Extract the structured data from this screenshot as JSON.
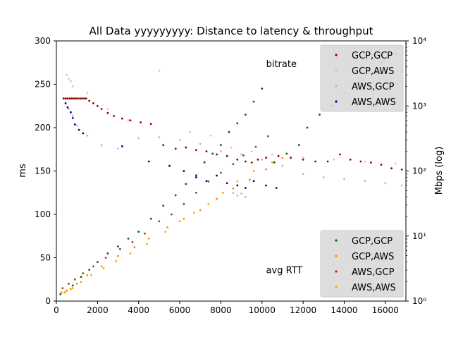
{
  "chart_data": {
    "type": "scatter",
    "title": "All Data yyyyyyyyy: Distance to latency & throughput",
    "xlabel": "",
    "ylabel_left": "ms",
    "ylabel_right": "Mbps (log)",
    "xlim": [
      0,
      17000
    ],
    "ylim_left": [
      0,
      300
    ],
    "ylim_right": [
      1,
      10000
    ],
    "y_right_scale": "log",
    "x_ticks": [
      0,
      2000,
      4000,
      6000,
      8000,
      10000,
      12000,
      14000,
      16000
    ],
    "y_left_ticks": [
      0,
      50,
      100,
      150,
      200,
      250,
      300
    ],
    "y_right_ticks": [
      1,
      10,
      100,
      1000,
      10000
    ],
    "y_right_tick_labels": [
      "10⁰",
      "10¹",
      "10²",
      "10³",
      "10⁴"
    ],
    "grid": false,
    "annotations": [
      {
        "text": "bitrate",
        "x": 10200,
        "y_left": 270
      },
      {
        "text": "avg RTT",
        "x": 10200,
        "y_left": 32
      }
    ],
    "legends": [
      {
        "placement": "upper-right",
        "entries": [
          {
            "label": "GCP,GCP",
            "color": "#8b0000"
          },
          {
            "label": "GCP,AWS",
            "color": "#f4b6b6"
          },
          {
            "label": "AWS,GCP",
            "color": "#dda0dd"
          },
          {
            "label": "AWS,AWS",
            "color": "#00008b"
          }
        ]
      },
      {
        "placement": "lower-right",
        "entries": [
          {
            "label": "GCP,GCP",
            "color": "#006400"
          },
          {
            "label": "GCP,AWS",
            "color": "#ff8c00"
          },
          {
            "label": "AWS,GCP",
            "color": "#8b4513"
          },
          {
            "label": "AWS,AWS",
            "color": "#ffa500"
          }
        ]
      }
    ],
    "series": [
      {
        "name": "GCP,GCP",
        "kind": "bitrate",
        "axis": "right",
        "color": "#8b0000",
        "points": [
          [
            350,
            1300
          ],
          [
            450,
            1300
          ],
          [
            550,
            1300
          ],
          [
            650,
            1300
          ],
          [
            750,
            1300
          ],
          [
            850,
            1300
          ],
          [
            950,
            1300
          ],
          [
            1050,
            1300
          ],
          [
            1150,
            1300
          ],
          [
            1250,
            1300
          ],
          [
            1350,
            1300
          ],
          [
            1450,
            1300
          ],
          [
            1600,
            1200
          ],
          [
            1800,
            1100
          ],
          [
            2000,
            1000
          ],
          [
            2200,
            900
          ],
          [
            2500,
            780
          ],
          [
            2800,
            700
          ],
          [
            3200,
            640
          ],
          [
            3600,
            600
          ],
          [
            4100,
            560
          ],
          [
            4600,
            530
          ],
          [
            5200,
            250
          ],
          [
            5800,
            220
          ],
          [
            6300,
            230
          ],
          [
            6800,
            210
          ],
          [
            7300,
            200
          ],
          [
            7800,
            180
          ],
          [
            8300,
            170
          ],
          [
            8800,
            150
          ],
          [
            9200,
            140
          ],
          [
            9500,
            135
          ],
          [
            9800,
            150
          ],
          [
            10200,
            160
          ],
          [
            10800,
            170
          ],
          [
            11400,
            160
          ],
          [
            12000,
            150
          ],
          [
            12600,
            140
          ],
          [
            13200,
            140
          ],
          [
            13800,
            180
          ],
          [
            14300,
            150
          ],
          [
            14800,
            140
          ],
          [
            15300,
            135
          ],
          [
            15800,
            125
          ],
          [
            16300,
            110
          ],
          [
            16800,
            105
          ]
        ]
      },
      {
        "name": "GCP,AWS",
        "kind": "bitrate",
        "axis": "right",
        "color": "#f4b6b6",
        "points": [
          [
            500,
            3000
          ],
          [
            600,
            2600
          ],
          [
            700,
            2400
          ],
          [
            800,
            2000
          ],
          [
            1500,
            1600
          ],
          [
            2500,
            900
          ],
          [
            3500,
            600
          ],
          [
            5000,
            3500
          ],
          [
            6500,
            400
          ],
          [
            7500,
            350
          ],
          [
            8500,
            230
          ],
          [
            9500,
            200
          ],
          [
            10500,
            180
          ],
          [
            12000,
            160
          ],
          [
            13500,
            150
          ],
          [
            15000,
            140
          ],
          [
            16500,
            130
          ]
        ]
      },
      {
        "name": "AWS,GCP",
        "kind": "bitrate",
        "axis": "right",
        "color": "#dda0dd",
        "points": [
          [
            600,
            900
          ],
          [
            800,
            700
          ],
          [
            1000,
            500
          ],
          [
            1500,
            350
          ],
          [
            2200,
            250
          ],
          [
            3000,
            220
          ],
          [
            4000,
            320
          ],
          [
            5000,
            330
          ],
          [
            6000,
            300
          ],
          [
            7000,
            260
          ],
          [
            8000,
            200
          ],
          [
            9000,
            180
          ],
          [
            10000,
            150
          ],
          [
            11000,
            120
          ],
          [
            12000,
            90
          ],
          [
            13000,
            80
          ],
          [
            14000,
            75
          ],
          [
            15000,
            70
          ],
          [
            16000,
            65
          ],
          [
            16800,
            60
          ],
          [
            9200,
            40
          ],
          [
            9000,
            45
          ],
          [
            8800,
            42
          ],
          [
            8600,
            46
          ]
        ]
      },
      {
        "name": "AWS,AWS",
        "kind": "bitrate",
        "axis": "right",
        "color": "#00008b",
        "points": [
          [
            450,
            1100
          ],
          [
            550,
            950
          ],
          [
            700,
            800
          ],
          [
            800,
            650
          ],
          [
            900,
            520
          ],
          [
            1100,
            430
          ],
          [
            1300,
            380
          ],
          [
            3200,
            240
          ],
          [
            4500,
            140
          ],
          [
            5500,
            120
          ],
          [
            6200,
            100
          ],
          [
            6800,
            80
          ],
          [
            7300,
            70
          ],
          [
            7800,
            85
          ],
          [
            8300,
            65
          ],
          [
            8800,
            60
          ],
          [
            9200,
            55
          ],
          [
            9600,
            70
          ],
          [
            10200,
            60
          ],
          [
            10700,
            55
          ]
        ]
      },
      {
        "name": "GCP,GCP",
        "kind": "rtt",
        "axis": "left",
        "color": "#006400",
        "points": [
          [
            200,
            8
          ],
          [
            500,
            12
          ],
          [
            800,
            18
          ],
          [
            1200,
            28
          ],
          [
            1600,
            36
          ],
          [
            2000,
            45
          ],
          [
            2500,
            55
          ],
          [
            3000,
            63
          ],
          [
            3500,
            72
          ],
          [
            4000,
            80
          ],
          [
            4600,
            95
          ],
          [
            5200,
            110
          ],
          [
            5800,
            122
          ],
          [
            6300,
            135
          ],
          [
            6800,
            145
          ],
          [
            7200,
            160
          ],
          [
            7600,
            170
          ],
          [
            8000,
            180
          ],
          [
            8400,
            195
          ],
          [
            8800,
            205
          ],
          [
            9200,
            215
          ],
          [
            9600,
            230
          ],
          [
            10000,
            245
          ],
          [
            10600,
            160
          ],
          [
            11200,
            170
          ],
          [
            11800,
            180
          ],
          [
            12200,
            200
          ],
          [
            12800,
            215
          ],
          [
            13400,
            225
          ],
          [
            14000,
            240
          ],
          [
            14600,
            250
          ],
          [
            15200,
            265
          ],
          [
            15800,
            275
          ],
          [
            16500,
            285
          ]
        ]
      },
      {
        "name": "GCP,AWS",
        "kind": "rtt",
        "axis": "left",
        "color": "#ff8c00",
        "points": [
          [
            400,
            10
          ],
          [
            700,
            14
          ],
          [
            1000,
            20
          ],
          [
            1500,
            30
          ],
          [
            2200,
            40
          ],
          [
            3000,
            52
          ],
          [
            3800,
            62
          ],
          [
            4500,
            72
          ],
          [
            5400,
            85
          ],
          [
            6200,
            95
          ],
          [
            7000,
            105
          ],
          [
            7800,
            118
          ],
          [
            8600,
            130
          ],
          [
            9400,
            140
          ],
          [
            10200,
            152
          ],
          [
            11000,
            165
          ]
        ]
      },
      {
        "name": "AWS,GCP",
        "kind": "rtt",
        "axis": "left",
        "color": "#8b4513",
        "points": [
          [
            300,
            15
          ],
          [
            600,
            20
          ],
          [
            900,
            25
          ],
          [
            1300,
            32
          ],
          [
            1800,
            40
          ],
          [
            2400,
            50
          ],
          [
            3100,
            60
          ],
          [
            3700,
            68
          ],
          [
            4300,
            78
          ],
          [
            5000,
            92
          ],
          [
            5600,
            100
          ],
          [
            6200,
            112
          ],
          [
            6800,
            125
          ],
          [
            7400,
            138
          ],
          [
            8000,
            148
          ],
          [
            8600,
            158
          ],
          [
            9100,
            168
          ],
          [
            9700,
            178
          ],
          [
            10300,
            190
          ]
        ]
      },
      {
        "name": "AWS,AWS",
        "kind": "rtt",
        "axis": "left",
        "color": "#ffa500",
        "points": [
          [
            250,
            10
          ],
          [
            500,
            12
          ],
          [
            800,
            15
          ],
          [
            1200,
            22
          ],
          [
            1700,
            30
          ],
          [
            2300,
            38
          ],
          [
            2900,
            46
          ],
          [
            3600,
            55
          ],
          [
            4400,
            66
          ],
          [
            5300,
            80
          ],
          [
            6000,
            92
          ],
          [
            6700,
            102
          ],
          [
            7400,
            112
          ],
          [
            8100,
            125
          ],
          [
            8800,
            138
          ],
          [
            9600,
            150
          ],
          [
            10500,
            160
          ]
        ]
      }
    ]
  }
}
